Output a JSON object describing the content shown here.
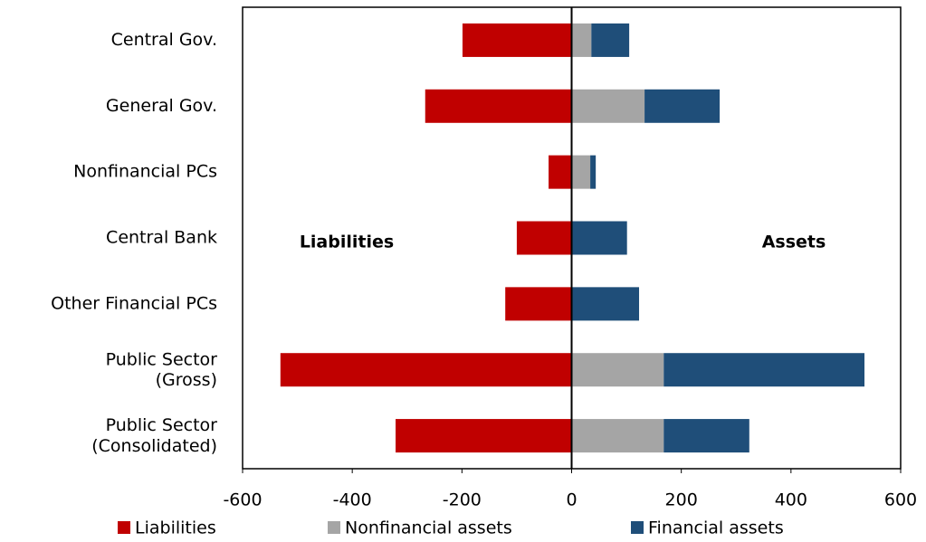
{
  "chart_data": {
    "type": "stacked-hbar",
    "categories": [
      "Central Gov.",
      "General Gov.",
      "Nonfinancial PCs",
      "Central Bank",
      "Other Financial PCs",
      "Public Sector\n(Gross)",
      "Public Sector\n(Consolidated)"
    ],
    "series": [
      {
        "name": "Liabilities",
        "color": "#c00000",
        "values": [
          -199,
          -267,
          -42,
          -100,
          -121,
          -531,
          -321
        ]
      },
      {
        "name": "Nonfinancial assets",
        "color": "#a5a5a5",
        "values": [
          36,
          133,
          34,
          0,
          0,
          168,
          168
        ]
      },
      {
        "name": "Financial assets",
        "color": "#1f4e79",
        "values": [
          69,
          137,
          10,
          101,
          123,
          366,
          156
        ]
      }
    ],
    "xlim": [
      -600,
      600
    ],
    "xticks": [
      -600,
      -400,
      -200,
      0,
      200,
      400,
      600
    ],
    "annotations": [
      "Liabilities",
      "Assets"
    ],
    "grid": false,
    "legend": "bottom"
  }
}
